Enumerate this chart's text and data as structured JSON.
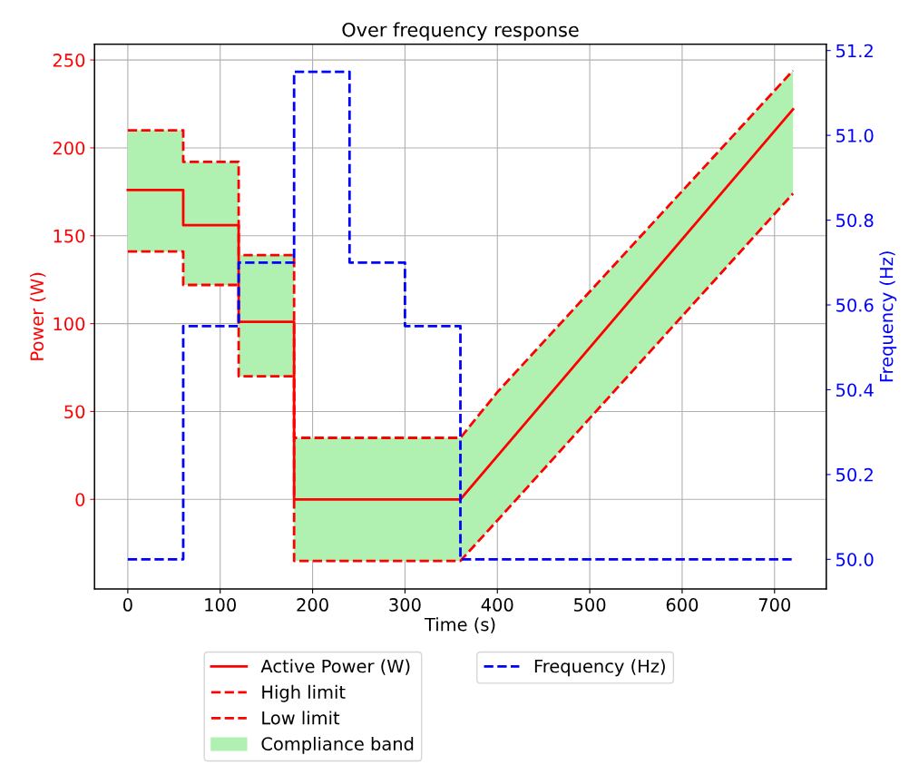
{
  "chart_data": {
    "type": "line",
    "title": "Over frequency response",
    "xlabel": "Time (s)",
    "ylabel": "Power (W)",
    "y2label": "Frequency (Hz)",
    "series": [
      {
        "name": "Active Power (W)",
        "type": "line",
        "color": "#ff0000",
        "line_style": "solid",
        "x": [
          0,
          60,
          60,
          120,
          120,
          180,
          180,
          360,
          720
        ],
        "values": [
          176,
          176,
          156,
          156,
          101,
          101,
          0,
          0,
          222
        ]
      },
      {
        "name": "High limit",
        "type": "line",
        "color": "#ff0000",
        "line_style": "dashed",
        "x": [
          0,
          60,
          60,
          120,
          120,
          180,
          180,
          360,
          400,
          720
        ],
        "values": [
          210,
          210,
          192,
          192,
          139,
          139,
          35,
          35,
          61,
          244
        ]
      },
      {
        "name": "Low limit",
        "type": "line",
        "color": "#ff0000",
        "line_style": "dashed",
        "x": [
          0,
          60,
          60,
          120,
          120,
          180,
          180,
          360,
          400,
          720
        ],
        "values": [
          141,
          141,
          122,
          122,
          70,
          70,
          -35,
          -35,
          -12,
          174
        ]
      },
      {
        "name": "Compliance band",
        "color": "#b0f0b0",
        "x": [
          0,
          60,
          60,
          120,
          120,
          180,
          180,
          360,
          400,
          720
        ],
        "values": [
          null,
          null,
          null,
          null,
          null,
          null,
          null,
          null,
          null,
          null
        ],
        "lower": [
          141,
          141,
          122,
          122,
          70,
          70,
          -35,
          -35,
          -12,
          174
        ],
        "upper": [
          210,
          210,
          192,
          192,
          139,
          139,
          35,
          35,
          61,
          244
        ]
      },
      {
        "name": "Frequency (Hz)",
        "type": "line",
        "axis": "y2",
        "color": "#0000ff",
        "line_style": "dashed",
        "x": [
          0,
          60,
          60,
          120,
          120,
          180,
          180,
          240,
          240,
          300,
          300,
          360,
          360,
          720
        ],
        "values": [
          50.0,
          50.0,
          50.55,
          50.55,
          50.7,
          50.7,
          51.15,
          51.15,
          50.7,
          50.7,
          50.55,
          50.55,
          50.0,
          50.0
        ]
      }
    ],
    "xlim": [
      -36,
      756
    ],
    "xticks": [
      0,
      100,
      200,
      300,
      400,
      500,
      600,
      700
    ],
    "ylim": [
      -51,
      259
    ],
    "yticks": [
      0,
      50,
      100,
      150,
      200,
      250
    ],
    "y2lim": [
      49.93,
      51.215
    ],
    "y2ticks": [
      {
        "value": 50.0,
        "label": "50.0"
      },
      50.2,
      50.4,
      50.6,
      50.8,
      {
        "value": 51.0,
        "label": "51.0"
      },
      51.2
    ],
    "grid": true,
    "legend": "bottom",
    "marker": "none"
  }
}
